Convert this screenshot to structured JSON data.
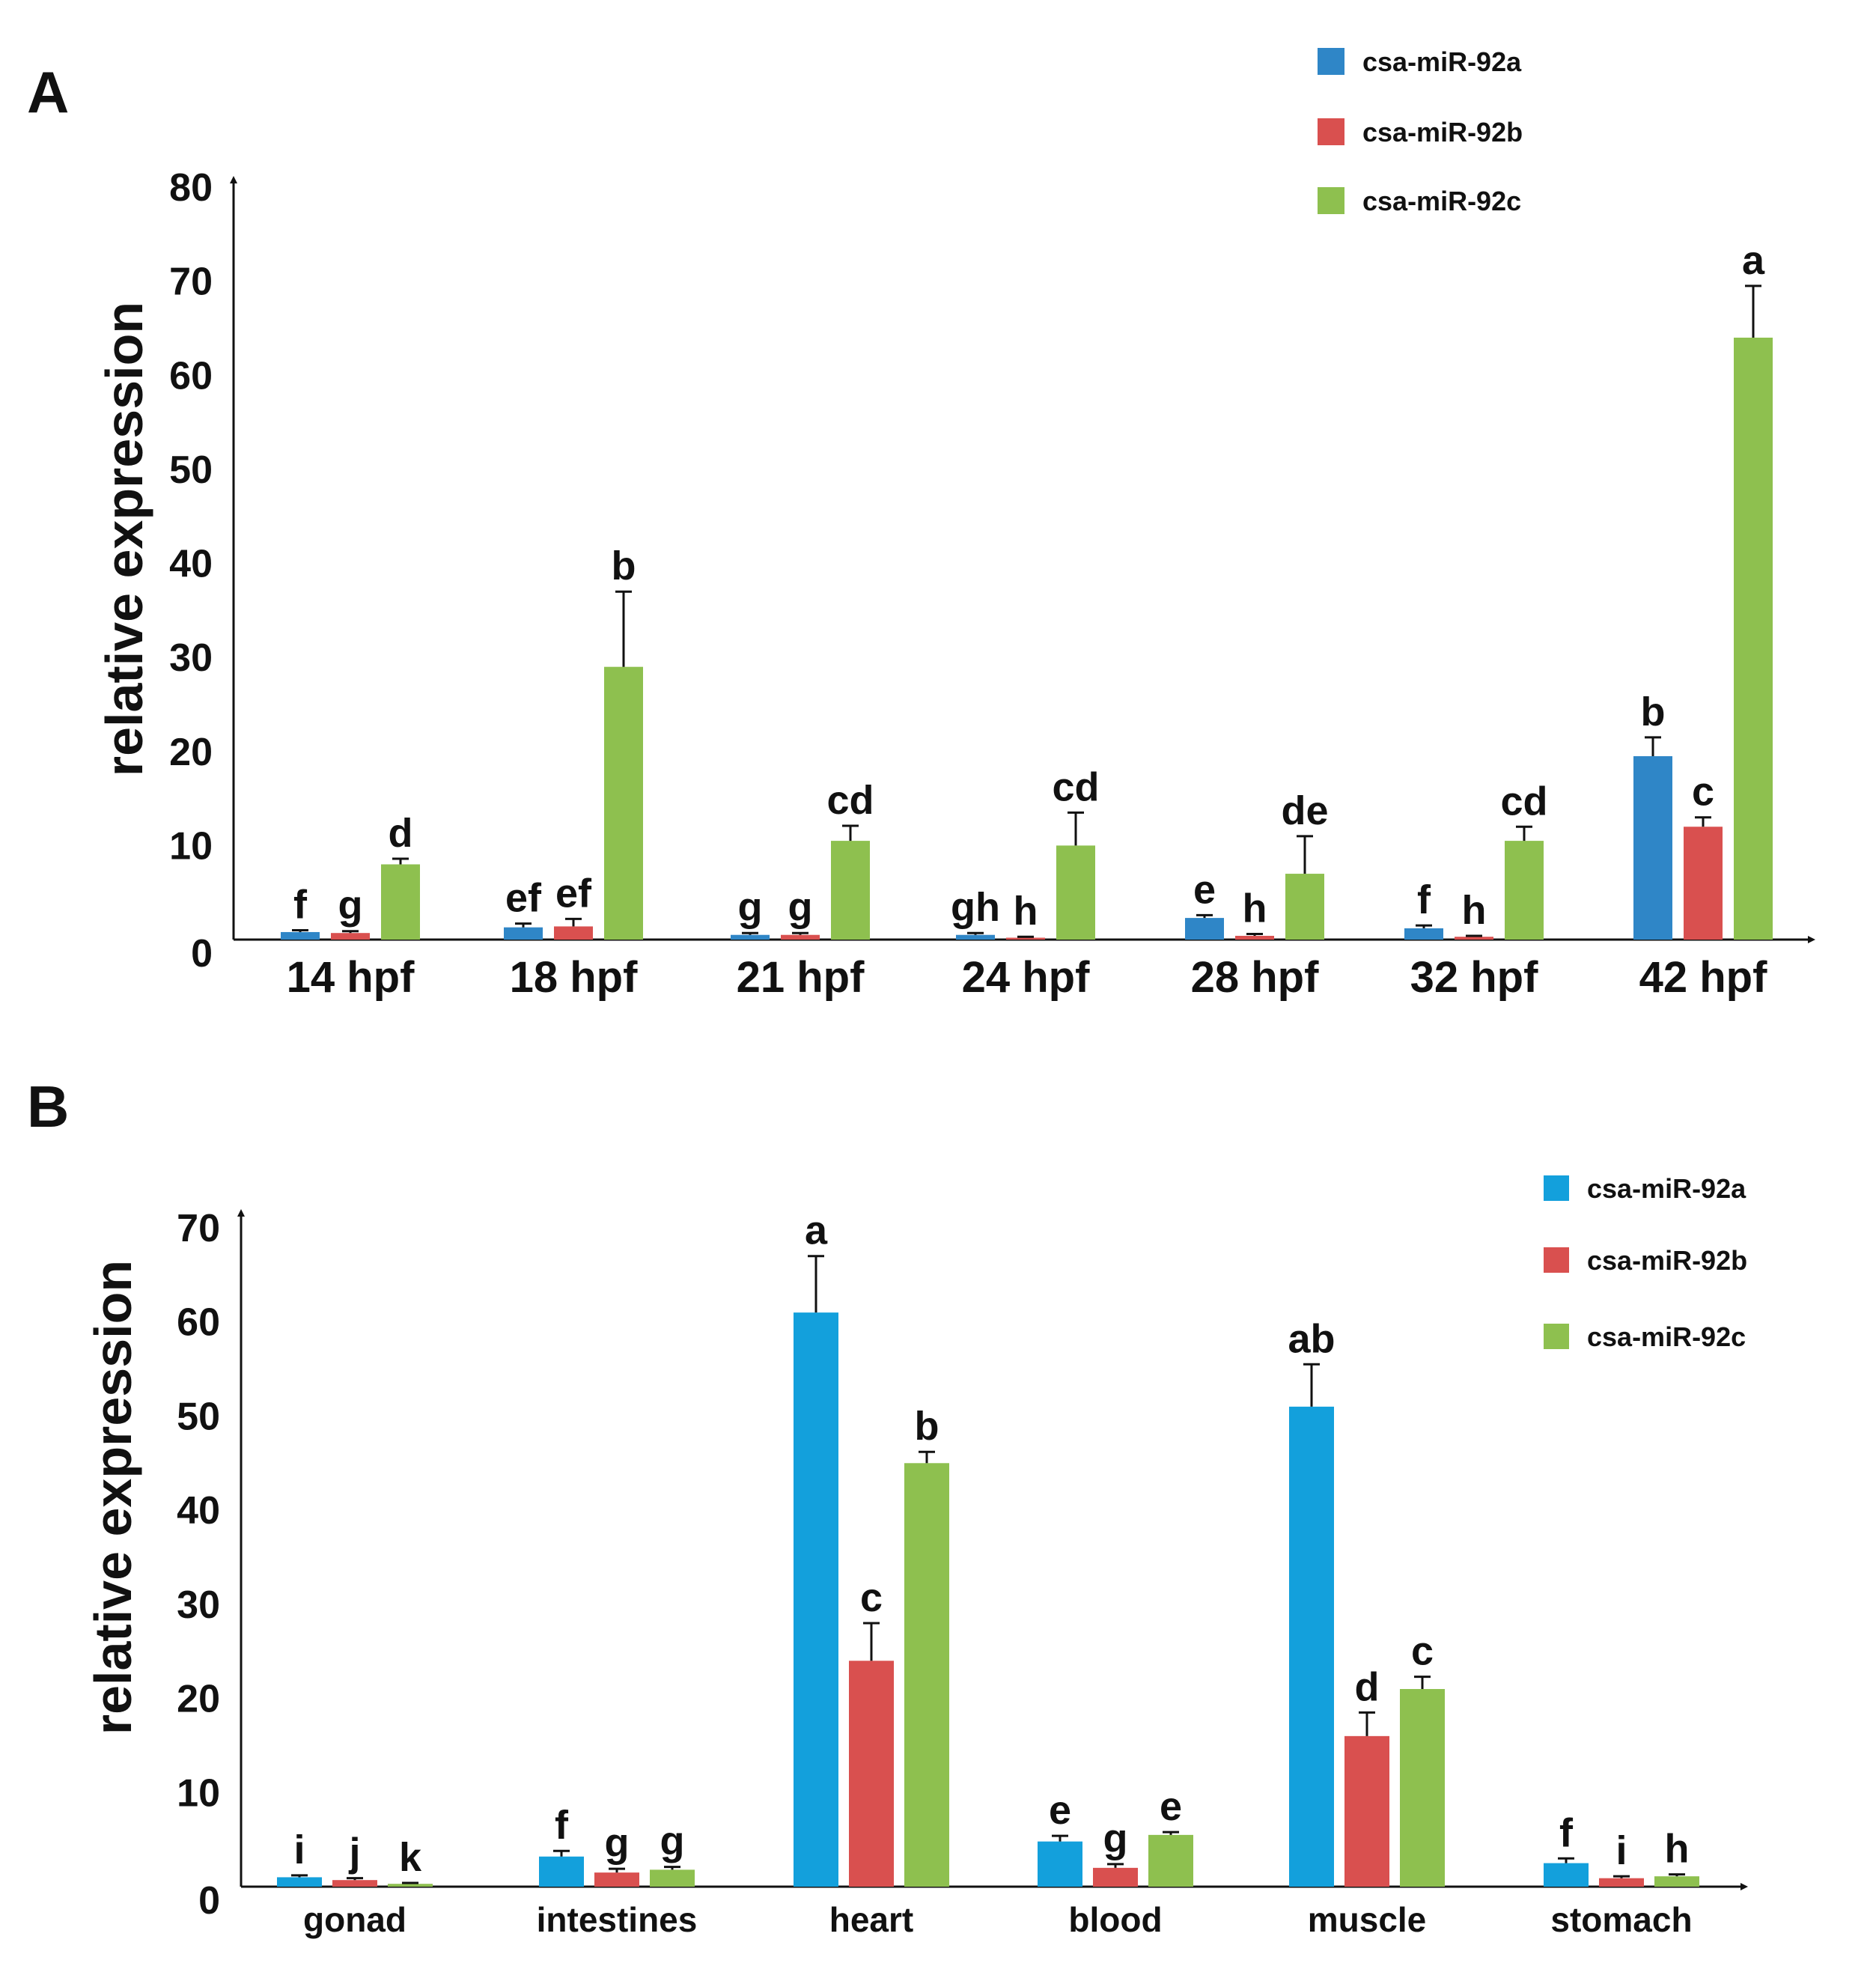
{
  "colors": {
    "csa-miR-92a": "#2f86c7",
    "csa-miR-92b": "#d9504f",
    "csa-miR-92c": "#8ec04f",
    "csa-miR-92a_B": "#13a0dc"
  },
  "chart_data": [
    {
      "panel": "A",
      "type": "bar",
      "title": "",
      "xlabel": "",
      "ylabel": "relative expression",
      "ylim": [
        0,
        80
      ],
      "yticks": [
        "0",
        "10",
        "20",
        "30",
        "40",
        "50",
        "60",
        "70",
        "80"
      ],
      "categories": [
        "14 hpf",
        "18 hpf",
        "21 hpf",
        "24 hpf",
        "28 hpf",
        "32 hpf",
        "42 hpf"
      ],
      "legend_position": "top-right",
      "series": [
        {
          "name": "csa-miR-92a",
          "values": [
            0.8,
            1.3,
            0.5,
            0.5,
            2.3,
            1.2,
            19.5
          ],
          "errors": [
            0.2,
            0.4,
            0.2,
            0.2,
            0.3,
            0.3,
            2.0
          ],
          "letters": [
            "f",
            "ef",
            "g",
            "gh",
            "e",
            "f",
            "b"
          ]
        },
        {
          "name": "csa-miR-92b",
          "values": [
            0.7,
            1.4,
            0.5,
            0.2,
            0.4,
            0.3,
            12.0
          ],
          "errors": [
            0.2,
            0.8,
            0.2,
            0.1,
            0.2,
            0.1,
            1.0
          ],
          "letters": [
            "g",
            "ef",
            "g",
            "h",
            "h",
            "h",
            "c"
          ]
        },
        {
          "name": "csa-miR-92c",
          "values": [
            8.0,
            29.0,
            10.5,
            10.0,
            7.0,
            10.5,
            64.0
          ],
          "errors": [
            0.6,
            8.0,
            1.6,
            3.5,
            4.0,
            1.5,
            5.5
          ],
          "letters": [
            "d",
            "b",
            "cd",
            "cd",
            "de",
            "cd",
            "a"
          ]
        }
      ]
    },
    {
      "panel": "B",
      "type": "bar",
      "title": "",
      "xlabel": "",
      "ylabel": "relative expression",
      "ylim": [
        0,
        70
      ],
      "yticks": [
        "0",
        "10",
        "20",
        "30",
        "40",
        "50",
        "60",
        "70"
      ],
      "categories": [
        "gonad",
        "intestines",
        "heart",
        "blood",
        "muscle",
        "stomach"
      ],
      "legend_position": "top-right",
      "series": [
        {
          "name": "csa-miR-92a",
          "values": [
            1.0,
            3.2,
            61.0,
            4.8,
            51.0,
            2.5
          ],
          "errors": [
            0.2,
            0.6,
            6.0,
            0.6,
            4.5,
            0.5
          ],
          "letters": [
            "i",
            "f",
            "a",
            "e",
            "ab",
            "f"
          ]
        },
        {
          "name": "csa-miR-92b",
          "values": [
            0.7,
            1.5,
            24.0,
            2.0,
            16.0,
            0.9
          ],
          "errors": [
            0.2,
            0.4,
            4.0,
            0.4,
            2.5,
            0.2
          ],
          "letters": [
            "j",
            "g",
            "c",
            "g",
            "d",
            "i"
          ]
        },
        {
          "name": "csa-miR-92c",
          "values": [
            0.3,
            1.8,
            45.0,
            5.5,
            21.0,
            1.1
          ],
          "errors": [
            0.1,
            0.3,
            1.2,
            0.3,
            1.3,
            0.2
          ],
          "letters": [
            "k",
            "g",
            "b",
            "e",
            "c",
            "h"
          ]
        }
      ]
    }
  ]
}
